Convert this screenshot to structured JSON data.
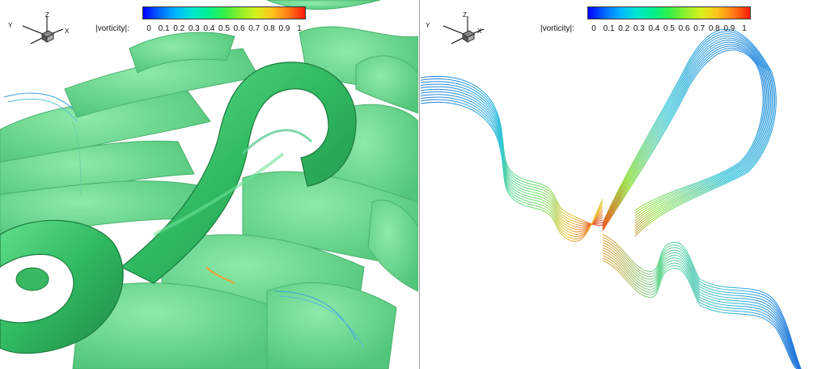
{
  "colors": {
    "vortex_fill": "#3fc46b",
    "vortex_dark": "#1f8a45",
    "colormap": [
      "#0000ff",
      "#0066ff",
      "#00b5ff",
      "#00e6d2",
      "#00f090",
      "#33f04a",
      "#8ef02a",
      "#d9f01f",
      "#ffc21a",
      "#ff7a14",
      "#ff1a0f"
    ]
  },
  "left_panel": {
    "legend": {
      "label": "|vorticity|:",
      "ticks": [
        "0",
        "0.1",
        "0.2",
        "0.3",
        "0.4",
        "0.5",
        "0.6",
        "0.7",
        "0.8",
        "0.9",
        "1"
      ]
    },
    "axes": {
      "x": "X",
      "y": "Y",
      "z": "Z"
    }
  },
  "right_panel": {
    "legend": {
      "label": "|vorticity|:",
      "ticks": [
        "0",
        "0.1",
        "0.2",
        "0.3",
        "0.4",
        "0.5",
        "0.6",
        "0.7",
        "0.8",
        "0.9",
        "1"
      ]
    },
    "axes": {
      "x": "X",
      "y": "Y",
      "z": "Z"
    }
  }
}
